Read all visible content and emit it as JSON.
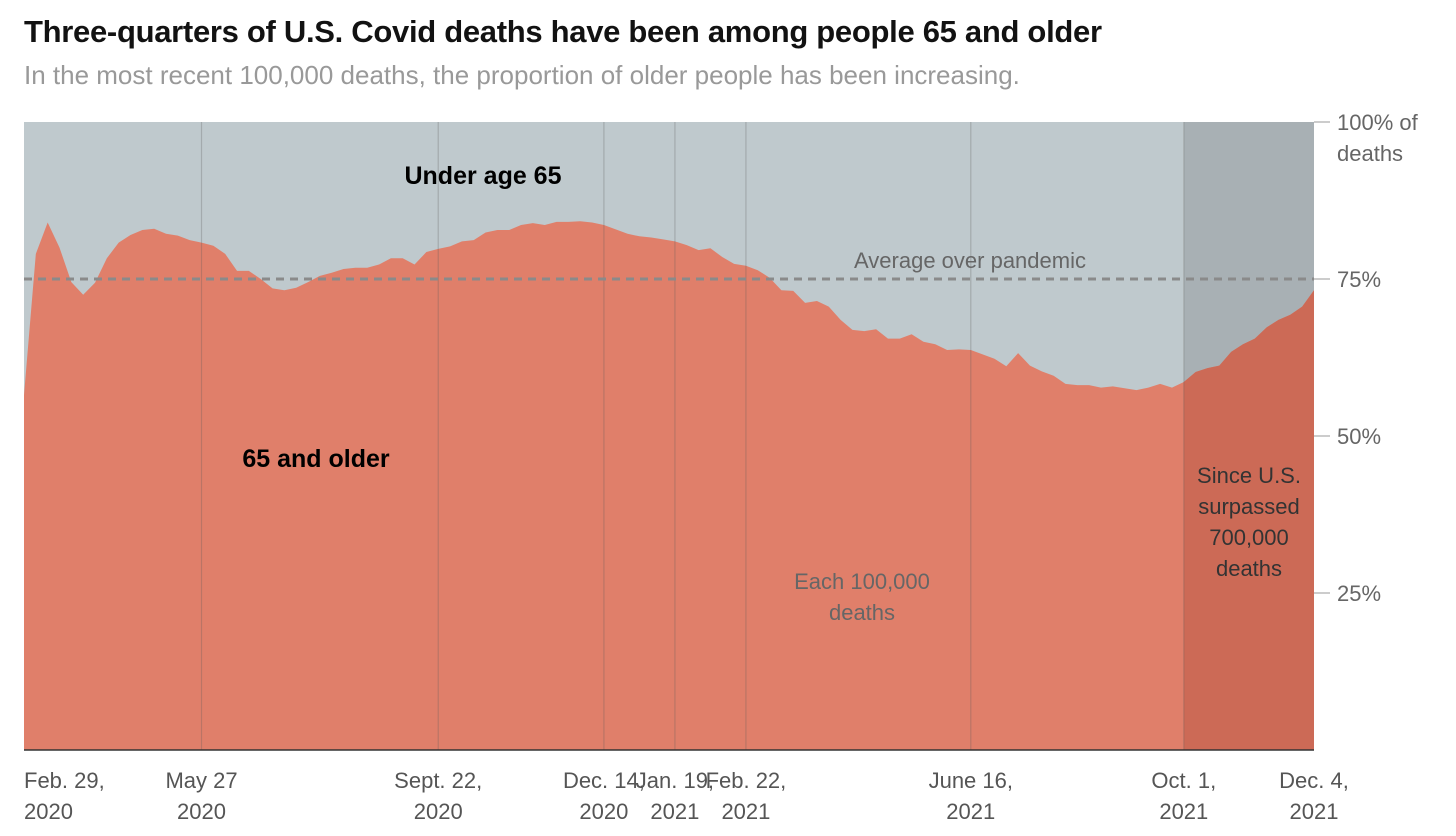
{
  "chart_data": {
    "type": "area",
    "title": "Three-quarters of U.S. Covid deaths have been among people 65 and older",
    "subtitle": "In the most recent 100,000 deaths, the proportion of older people has been increasing.",
    "categories": [
      "Feb. 29, 2020",
      null,
      null,
      null,
      null,
      null,
      null,
      null,
      null,
      null,
      null,
      null,
      null,
      null,
      null,
      "May 27 2020",
      null,
      null,
      null,
      null,
      null,
      null,
      null,
      null,
      null,
      null,
      null,
      null,
      null,
      null,
      null,
      null,
      null,
      null,
      null,
      "Sept. 22, 2020",
      null,
      null,
      null,
      null,
      null,
      null,
      null,
      null,
      null,
      null,
      null,
      null,
      null,
      "Dec. 14, 2020",
      null,
      null,
      null,
      null,
      null,
      "Jan. 19, 2021",
      null,
      null,
      null,
      null,
      null,
      "Feb. 22, 2021",
      null,
      null,
      null,
      null,
      null,
      null,
      null,
      null,
      null,
      null,
      null,
      null,
      null,
      null,
      null,
      null,
      null,
      null,
      "June 16, 2021",
      null,
      null,
      null,
      null,
      null,
      null,
      null,
      null,
      null,
      null,
      null,
      null,
      null,
      null,
      null,
      null,
      null,
      "Oct. 1, 2021",
      null,
      null,
      null,
      null,
      null,
      null,
      null,
      null,
      null,
      null,
      "Dec. 4, 2021"
    ],
    "series": [
      {
        "name": "65 and older",
        "color": "#e07f6a",
        "highlight_color": "#cc6a56",
        "values": [
          56.5,
          79,
          84,
          80,
          74.5,
          72.5,
          74.4,
          78.3,
          80.8,
          82,
          82.8,
          83,
          82.2,
          81.9,
          81.2,
          80.8,
          80.3,
          79,
          76.3,
          76.3,
          75,
          73.5,
          73.2,
          73.6,
          74.5,
          75.5,
          76,
          76.6,
          76.8,
          76.8,
          77.3,
          78.3,
          78.3,
          77.3,
          79.3,
          79.8,
          80.2,
          81,
          81.2,
          82.4,
          82.8,
          82.8,
          83.6,
          83.9,
          83.6,
          84.1,
          84.1,
          84.2,
          84,
          83.6,
          82.9,
          82.2,
          81.8,
          81.6,
          81.3,
          81,
          80.4,
          79.6,
          79.9,
          78.5,
          77.4,
          77.1,
          76.4,
          75.2,
          73.2,
          73.1,
          71.2,
          71.5,
          70.6,
          68.5,
          66.9,
          66.7,
          67,
          65.5,
          65.5,
          66.2,
          65,
          64.6,
          63.7,
          63.8,
          63.7,
          63,
          62.3,
          61.1,
          63.2,
          61.2,
          60.3,
          59.6,
          58.3,
          58.1,
          58.1,
          57.7,
          57.9,
          57.6,
          57.3,
          57.7,
          58.3,
          57.7,
          58.6,
          60.2,
          60.8,
          61.2,
          63.4,
          64.6,
          65.5,
          67.3,
          68.5,
          69.3,
          70.6,
          73.2
        ]
      }
    ],
    "rest_label": "Under age 65",
    "rest_color": "#bfc9cd",
    "rest_highlight_color": "#a8b0b4",
    "average": 75,
    "average_label": "Average over pandemic",
    "interval_label": "Each 100,000 deaths",
    "highlight_start": "Oct. 1, 2021",
    "highlight_label": "Since U.S. surpassed 700,000 deaths",
    "ylim": [
      0,
      100
    ],
    "yticks": [
      {
        "value": 100,
        "label": "100% of deaths"
      },
      {
        "value": 75,
        "label": "75%"
      },
      {
        "value": 50,
        "label": "50%"
      },
      {
        "value": 25,
        "label": "25%"
      }
    ]
  }
}
